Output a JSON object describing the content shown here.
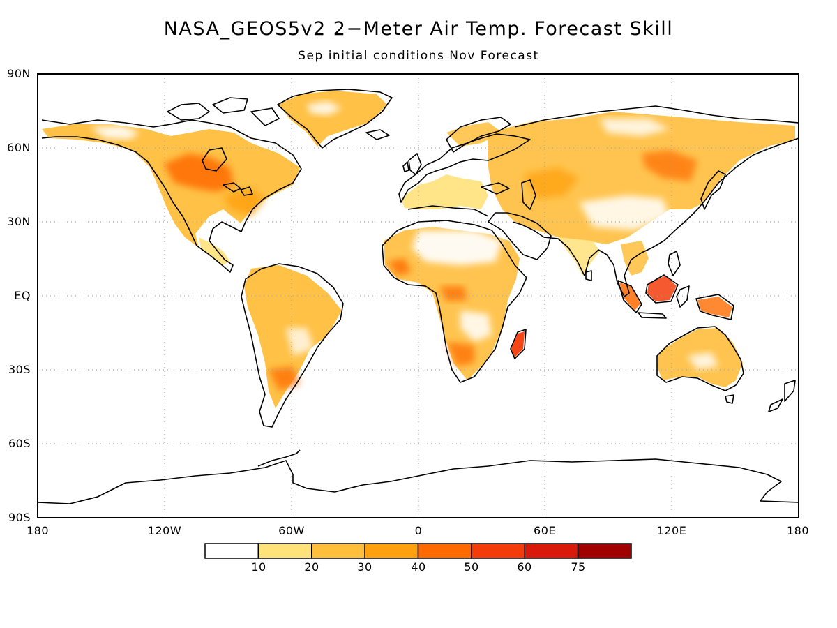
{
  "header": {
    "title": "NASA_GEOS5v2 2−Meter Air Temp. Forecast Skill",
    "subtitle": "Sep initial conditions   Nov Forecast"
  },
  "map": {
    "projection": "equirectangular",
    "lat_range": [
      -90,
      90
    ],
    "lon_range": [
      -180,
      180
    ],
    "gridlines": "dotted",
    "latitude_labels": [
      "90N",
      "60N",
      "30N",
      "EQ",
      "30S",
      "60S",
      "90S"
    ],
    "longitude_labels": [
      "180",
      "120W",
      "60W",
      "0",
      "60E",
      "120E",
      "180"
    ]
  },
  "colorbar": {
    "tick_labels": [
      "10",
      "20",
      "30",
      "40",
      "50",
      "60",
      "75"
    ],
    "colors": [
      "#ffffff",
      "#ffe27a",
      "#ffbe3c",
      "#ffa00f",
      "#ff6a00",
      "#f33c0a",
      "#d91a0a",
      "#a00000"
    ]
  }
}
